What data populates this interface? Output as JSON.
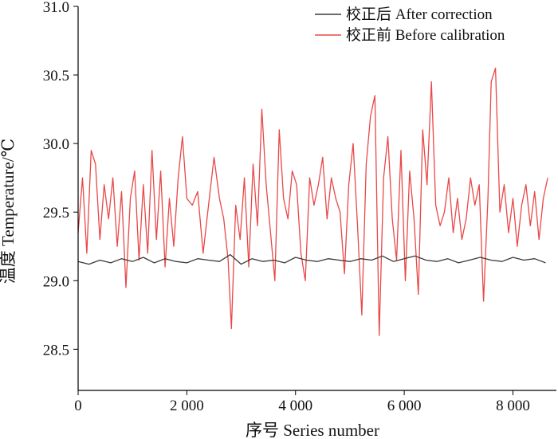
{
  "chart_data": {
    "type": "line",
    "title": "",
    "xlabel": "序号 Series number",
    "ylabel": "温度 Temperature/℃",
    "xlim": [
      0,
      8800
    ],
    "ylim": [
      28.2,
      31.0
    ],
    "x_ticks": [
      0,
      2000,
      4000,
      6000,
      8000
    ],
    "x_tick_labels": [
      "0",
      "2 000",
      "4 000",
      "6 000",
      "8 000"
    ],
    "y_ticks": [
      28.5,
      29.0,
      29.5,
      30.0,
      30.5,
      31.0
    ],
    "y_tick_labels": [
      "28.5",
      "29.0",
      "29.5",
      "30.0",
      "30.5",
      "31.0"
    ],
    "grid": false,
    "legend_position": "top-right",
    "series": [
      {
        "name": "校正后 After correction",
        "color": "#3a3a3a",
        "x": [
          0,
          200,
          400,
          600,
          800,
          1000,
          1200,
          1400,
          1600,
          1800,
          2000,
          2200,
          2400,
          2600,
          2800,
          3000,
          3200,
          3400,
          3600,
          3800,
          4000,
          4200,
          4400,
          4600,
          4800,
          5000,
          5200,
          5400,
          5600,
          5800,
          6000,
          6200,
          6400,
          6600,
          6800,
          7000,
          7200,
          7400,
          7600,
          7800,
          8000,
          8200,
          8400,
          8600
        ],
        "y": [
          29.14,
          29.12,
          29.15,
          29.13,
          29.16,
          29.14,
          29.17,
          29.13,
          29.16,
          29.14,
          29.13,
          29.16,
          29.15,
          29.14,
          29.19,
          29.12,
          29.16,
          29.14,
          29.15,
          29.13,
          29.17,
          29.15,
          29.14,
          29.16,
          29.15,
          29.14,
          29.16,
          29.15,
          29.18,
          29.14,
          29.16,
          29.18,
          29.15,
          29.14,
          29.16,
          29.13,
          29.15,
          29.17,
          29.15,
          29.14,
          29.17,
          29.15,
          29.16,
          29.13
        ]
      },
      {
        "name": "校正前 Before calibration",
        "color": "#e84848",
        "x": [
          0,
          80,
          160,
          240,
          320,
          400,
          480,
          560,
          640,
          720,
          800,
          880,
          960,
          1040,
          1120,
          1200,
          1280,
          1360,
          1440,
          1520,
          1600,
          1680,
          1760,
          1840,
          1920,
          2000,
          2100,
          2200,
          2300,
          2400,
          2500,
          2600,
          2680,
          2760,
          2820,
          2900,
          2980,
          3060,
          3140,
          3220,
          3300,
          3380,
          3460,
          3540,
          3620,
          3700,
          3780,
          3860,
          3940,
          4020,
          4100,
          4180,
          4260,
          4340,
          4420,
          4500,
          4580,
          4660,
          4740,
          4820,
          4900,
          4980,
          5060,
          5140,
          5220,
          5300,
          5380,
          5460,
          5540,
          5620,
          5700,
          5780,
          5860,
          5940,
          6020,
          6100,
          6180,
          6260,
          6340,
          6420,
          6500,
          6580,
          6660,
          6740,
          6820,
          6900,
          6980,
          7060,
          7140,
          7220,
          7300,
          7380,
          7460,
          7540,
          7600,
          7680,
          7760,
          7840,
          7920,
          8000,
          8080,
          8160,
          8240,
          8320,
          8400,
          8480,
          8560,
          8640
        ],
        "y": [
          29.35,
          29.75,
          29.2,
          29.95,
          29.85,
          29.3,
          29.7,
          29.45,
          29.75,
          29.25,
          29.65,
          28.95,
          29.6,
          29.8,
          29.15,
          29.7,
          29.2,
          29.95,
          29.3,
          29.8,
          29.1,
          29.6,
          29.25,
          29.75,
          30.05,
          29.6,
          29.55,
          29.65,
          29.2,
          29.55,
          29.9,
          29.6,
          29.45,
          29.15,
          28.65,
          29.55,
          29.3,
          29.75,
          29.1,
          29.85,
          29.4,
          30.25,
          29.7,
          29.35,
          29.0,
          30.1,
          29.6,
          29.45,
          29.8,
          29.7,
          29.2,
          29.0,
          29.75,
          29.55,
          29.7,
          29.9,
          29.45,
          29.75,
          29.6,
          29.5,
          29.05,
          29.7,
          30.0,
          29.4,
          28.75,
          29.85,
          30.2,
          30.35,
          28.6,
          29.75,
          30.05,
          29.45,
          29.15,
          29.95,
          29.0,
          29.8,
          29.45,
          28.9,
          30.1,
          29.7,
          30.45,
          29.55,
          29.4,
          29.5,
          29.75,
          29.35,
          29.6,
          29.3,
          29.45,
          29.75,
          29.55,
          29.7,
          28.85,
          29.6,
          30.45,
          30.55,
          29.5,
          29.7,
          29.35,
          29.6,
          29.25,
          29.55,
          29.7,
          29.4,
          29.65,
          29.3,
          29.6,
          29.75
        ]
      }
    ]
  }
}
